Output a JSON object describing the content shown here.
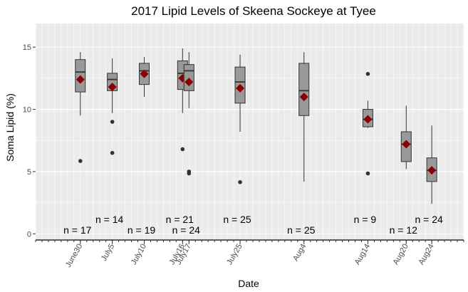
{
  "chart_data": {
    "type": "box",
    "title": "2017 Lipid Levels of Skeena Sockeye at Tyee",
    "xlabel": "Date",
    "ylabel": "Soma Lipid (%)",
    "ylim": [
      -0.5,
      16.9
    ],
    "yticks": [
      0,
      5,
      10,
      15
    ],
    "x_axis": "date",
    "xlim": [
      "2017-06-23",
      "2017-08-29"
    ],
    "grid": true,
    "mean_marker_color": "#8b0000",
    "box_fill": "#999999",
    "panel_bg": "#ebebeb",
    "groups": [
      {
        "date": "2017-06-30",
        "label": "June30",
        "min": 9.5,
        "q1": 11.4,
        "median": 13.0,
        "q3": 14.0,
        "max": 14.6,
        "mean": 12.4,
        "outliers": [
          5.85
        ],
        "n_label": "n = 17",
        "n_y": 0.3
      },
      {
        "date": "2017-07-05",
        "label": "July5",
        "min": 9.7,
        "q1": 11.5,
        "median": 12.4,
        "q3": 12.9,
        "max": 14.1,
        "mean": 11.8,
        "outliers": [
          9.0,
          6.5
        ],
        "n_label": "n = 14",
        "n_y": 1.15
      },
      {
        "date": "2017-07-10",
        "label": "July10",
        "min": 11.0,
        "q1": 12.0,
        "median": 13.1,
        "q3": 13.7,
        "max": 14.2,
        "mean": 12.85,
        "outliers": [],
        "n_label": "n = 19",
        "n_y": 0.3
      },
      {
        "date": "2017-07-16",
        "label": "July16",
        "min": 9.7,
        "q1": 11.6,
        "median": 12.9,
        "q3": 13.9,
        "max": 14.9,
        "mean": 12.5,
        "outliers": [
          6.8
        ],
        "n_label": "n = 21",
        "n_y": 1.15
      },
      {
        "date": "2017-07-17",
        "label": "July17",
        "min": 10.1,
        "q1": 11.5,
        "median": 13.1,
        "q3": 13.6,
        "max": 14.6,
        "mean": 12.2,
        "outliers": [
          5.0,
          4.85
        ],
        "n_label": "n = 24",
        "n_y": 0.3
      },
      {
        "date": "2017-07-25",
        "label": "July25",
        "min": 8.2,
        "q1": 10.5,
        "median": 12.2,
        "q3": 13.4,
        "max": 14.4,
        "mean": 11.7,
        "outliers": [
          4.15
        ],
        "n_label": "n = 25",
        "n_y": 1.15
      },
      {
        "date": "2017-08-04",
        "label": "Aug4",
        "min": 4.2,
        "q1": 9.5,
        "median": 11.5,
        "q3": 13.7,
        "max": 14.6,
        "mean": 11.0,
        "outliers": [],
        "n_label": "n = 25",
        "n_y": 0.3
      },
      {
        "date": "2017-08-14",
        "label": "Aug14",
        "min": 8.5,
        "q1": 8.6,
        "median": 9.2,
        "q3": 10.0,
        "max": 10.7,
        "mean": 9.2,
        "outliers": [
          12.85,
          4.85
        ],
        "n_label": "n = 9",
        "n_y": 1.15
      },
      {
        "date": "2017-08-20",
        "label": "Aug20",
        "min": 5.2,
        "q1": 5.8,
        "median": 7.2,
        "q3": 8.2,
        "max": 10.3,
        "mean": 7.2,
        "outliers": [],
        "n_label": "n = 12",
        "n_y": 0.3
      },
      {
        "date": "2017-08-24",
        "label": "Aug24",
        "min": 2.4,
        "q1": 4.2,
        "median": 5.1,
        "q3": 6.1,
        "max": 8.7,
        "mean": 5.1,
        "outliers": [],
        "n_label": "n = 24",
        "n_y": 1.15
      }
    ]
  }
}
